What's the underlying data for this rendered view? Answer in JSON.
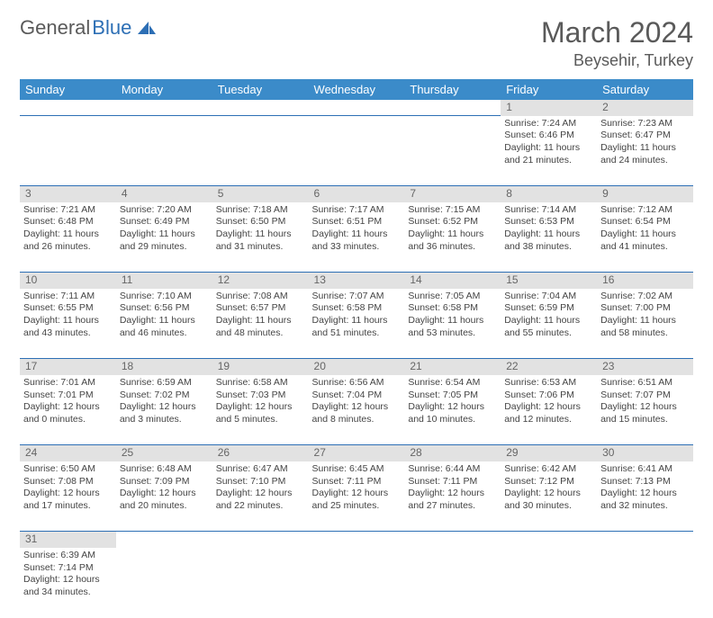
{
  "logo": {
    "part1": "General",
    "part2": "Blue"
  },
  "title": "March 2024",
  "location": "Beysehir, Turkey",
  "colors": {
    "header_bg": "#3b8bc9",
    "accent": "#2d6fb5",
    "daynum_bg": "#e2e2e2"
  },
  "day_headers": [
    "Sunday",
    "Monday",
    "Tuesday",
    "Wednesday",
    "Thursday",
    "Friday",
    "Saturday"
  ],
  "weeks": [
    [
      null,
      null,
      null,
      null,
      null,
      {
        "n": "1",
        "sr": "Sunrise: 7:24 AM",
        "ss": "Sunset: 6:46 PM",
        "d1": "Daylight: 11 hours",
        "d2": "and 21 minutes."
      },
      {
        "n": "2",
        "sr": "Sunrise: 7:23 AM",
        "ss": "Sunset: 6:47 PM",
        "d1": "Daylight: 11 hours",
        "d2": "and 24 minutes."
      }
    ],
    [
      {
        "n": "3",
        "sr": "Sunrise: 7:21 AM",
        "ss": "Sunset: 6:48 PM",
        "d1": "Daylight: 11 hours",
        "d2": "and 26 minutes."
      },
      {
        "n": "4",
        "sr": "Sunrise: 7:20 AM",
        "ss": "Sunset: 6:49 PM",
        "d1": "Daylight: 11 hours",
        "d2": "and 29 minutes."
      },
      {
        "n": "5",
        "sr": "Sunrise: 7:18 AM",
        "ss": "Sunset: 6:50 PM",
        "d1": "Daylight: 11 hours",
        "d2": "and 31 minutes."
      },
      {
        "n": "6",
        "sr": "Sunrise: 7:17 AM",
        "ss": "Sunset: 6:51 PM",
        "d1": "Daylight: 11 hours",
        "d2": "and 33 minutes."
      },
      {
        "n": "7",
        "sr": "Sunrise: 7:15 AM",
        "ss": "Sunset: 6:52 PM",
        "d1": "Daylight: 11 hours",
        "d2": "and 36 minutes."
      },
      {
        "n": "8",
        "sr": "Sunrise: 7:14 AM",
        "ss": "Sunset: 6:53 PM",
        "d1": "Daylight: 11 hours",
        "d2": "and 38 minutes."
      },
      {
        "n": "9",
        "sr": "Sunrise: 7:12 AM",
        "ss": "Sunset: 6:54 PM",
        "d1": "Daylight: 11 hours",
        "d2": "and 41 minutes."
      }
    ],
    [
      {
        "n": "10",
        "sr": "Sunrise: 7:11 AM",
        "ss": "Sunset: 6:55 PM",
        "d1": "Daylight: 11 hours",
        "d2": "and 43 minutes."
      },
      {
        "n": "11",
        "sr": "Sunrise: 7:10 AM",
        "ss": "Sunset: 6:56 PM",
        "d1": "Daylight: 11 hours",
        "d2": "and 46 minutes."
      },
      {
        "n": "12",
        "sr": "Sunrise: 7:08 AM",
        "ss": "Sunset: 6:57 PM",
        "d1": "Daylight: 11 hours",
        "d2": "and 48 minutes."
      },
      {
        "n": "13",
        "sr": "Sunrise: 7:07 AM",
        "ss": "Sunset: 6:58 PM",
        "d1": "Daylight: 11 hours",
        "d2": "and 51 minutes."
      },
      {
        "n": "14",
        "sr": "Sunrise: 7:05 AM",
        "ss": "Sunset: 6:58 PM",
        "d1": "Daylight: 11 hours",
        "d2": "and 53 minutes."
      },
      {
        "n": "15",
        "sr": "Sunrise: 7:04 AM",
        "ss": "Sunset: 6:59 PM",
        "d1": "Daylight: 11 hours",
        "d2": "and 55 minutes."
      },
      {
        "n": "16",
        "sr": "Sunrise: 7:02 AM",
        "ss": "Sunset: 7:00 PM",
        "d1": "Daylight: 11 hours",
        "d2": "and 58 minutes."
      }
    ],
    [
      {
        "n": "17",
        "sr": "Sunrise: 7:01 AM",
        "ss": "Sunset: 7:01 PM",
        "d1": "Daylight: 12 hours",
        "d2": "and 0 minutes."
      },
      {
        "n": "18",
        "sr": "Sunrise: 6:59 AM",
        "ss": "Sunset: 7:02 PM",
        "d1": "Daylight: 12 hours",
        "d2": "and 3 minutes."
      },
      {
        "n": "19",
        "sr": "Sunrise: 6:58 AM",
        "ss": "Sunset: 7:03 PM",
        "d1": "Daylight: 12 hours",
        "d2": "and 5 minutes."
      },
      {
        "n": "20",
        "sr": "Sunrise: 6:56 AM",
        "ss": "Sunset: 7:04 PM",
        "d1": "Daylight: 12 hours",
        "d2": "and 8 minutes."
      },
      {
        "n": "21",
        "sr": "Sunrise: 6:54 AM",
        "ss": "Sunset: 7:05 PM",
        "d1": "Daylight: 12 hours",
        "d2": "and 10 minutes."
      },
      {
        "n": "22",
        "sr": "Sunrise: 6:53 AM",
        "ss": "Sunset: 7:06 PM",
        "d1": "Daylight: 12 hours",
        "d2": "and 12 minutes."
      },
      {
        "n": "23",
        "sr": "Sunrise: 6:51 AM",
        "ss": "Sunset: 7:07 PM",
        "d1": "Daylight: 12 hours",
        "d2": "and 15 minutes."
      }
    ],
    [
      {
        "n": "24",
        "sr": "Sunrise: 6:50 AM",
        "ss": "Sunset: 7:08 PM",
        "d1": "Daylight: 12 hours",
        "d2": "and 17 minutes."
      },
      {
        "n": "25",
        "sr": "Sunrise: 6:48 AM",
        "ss": "Sunset: 7:09 PM",
        "d1": "Daylight: 12 hours",
        "d2": "and 20 minutes."
      },
      {
        "n": "26",
        "sr": "Sunrise: 6:47 AM",
        "ss": "Sunset: 7:10 PM",
        "d1": "Daylight: 12 hours",
        "d2": "and 22 minutes."
      },
      {
        "n": "27",
        "sr": "Sunrise: 6:45 AM",
        "ss": "Sunset: 7:11 PM",
        "d1": "Daylight: 12 hours",
        "d2": "and 25 minutes."
      },
      {
        "n": "28",
        "sr": "Sunrise: 6:44 AM",
        "ss": "Sunset: 7:11 PM",
        "d1": "Daylight: 12 hours",
        "d2": "and 27 minutes."
      },
      {
        "n": "29",
        "sr": "Sunrise: 6:42 AM",
        "ss": "Sunset: 7:12 PM",
        "d1": "Daylight: 12 hours",
        "d2": "and 30 minutes."
      },
      {
        "n": "30",
        "sr": "Sunrise: 6:41 AM",
        "ss": "Sunset: 7:13 PM",
        "d1": "Daylight: 12 hours",
        "d2": "and 32 minutes."
      }
    ],
    [
      {
        "n": "31",
        "sr": "Sunrise: 6:39 AM",
        "ss": "Sunset: 7:14 PM",
        "d1": "Daylight: 12 hours",
        "d2": "and 34 minutes."
      },
      null,
      null,
      null,
      null,
      null,
      null
    ]
  ]
}
